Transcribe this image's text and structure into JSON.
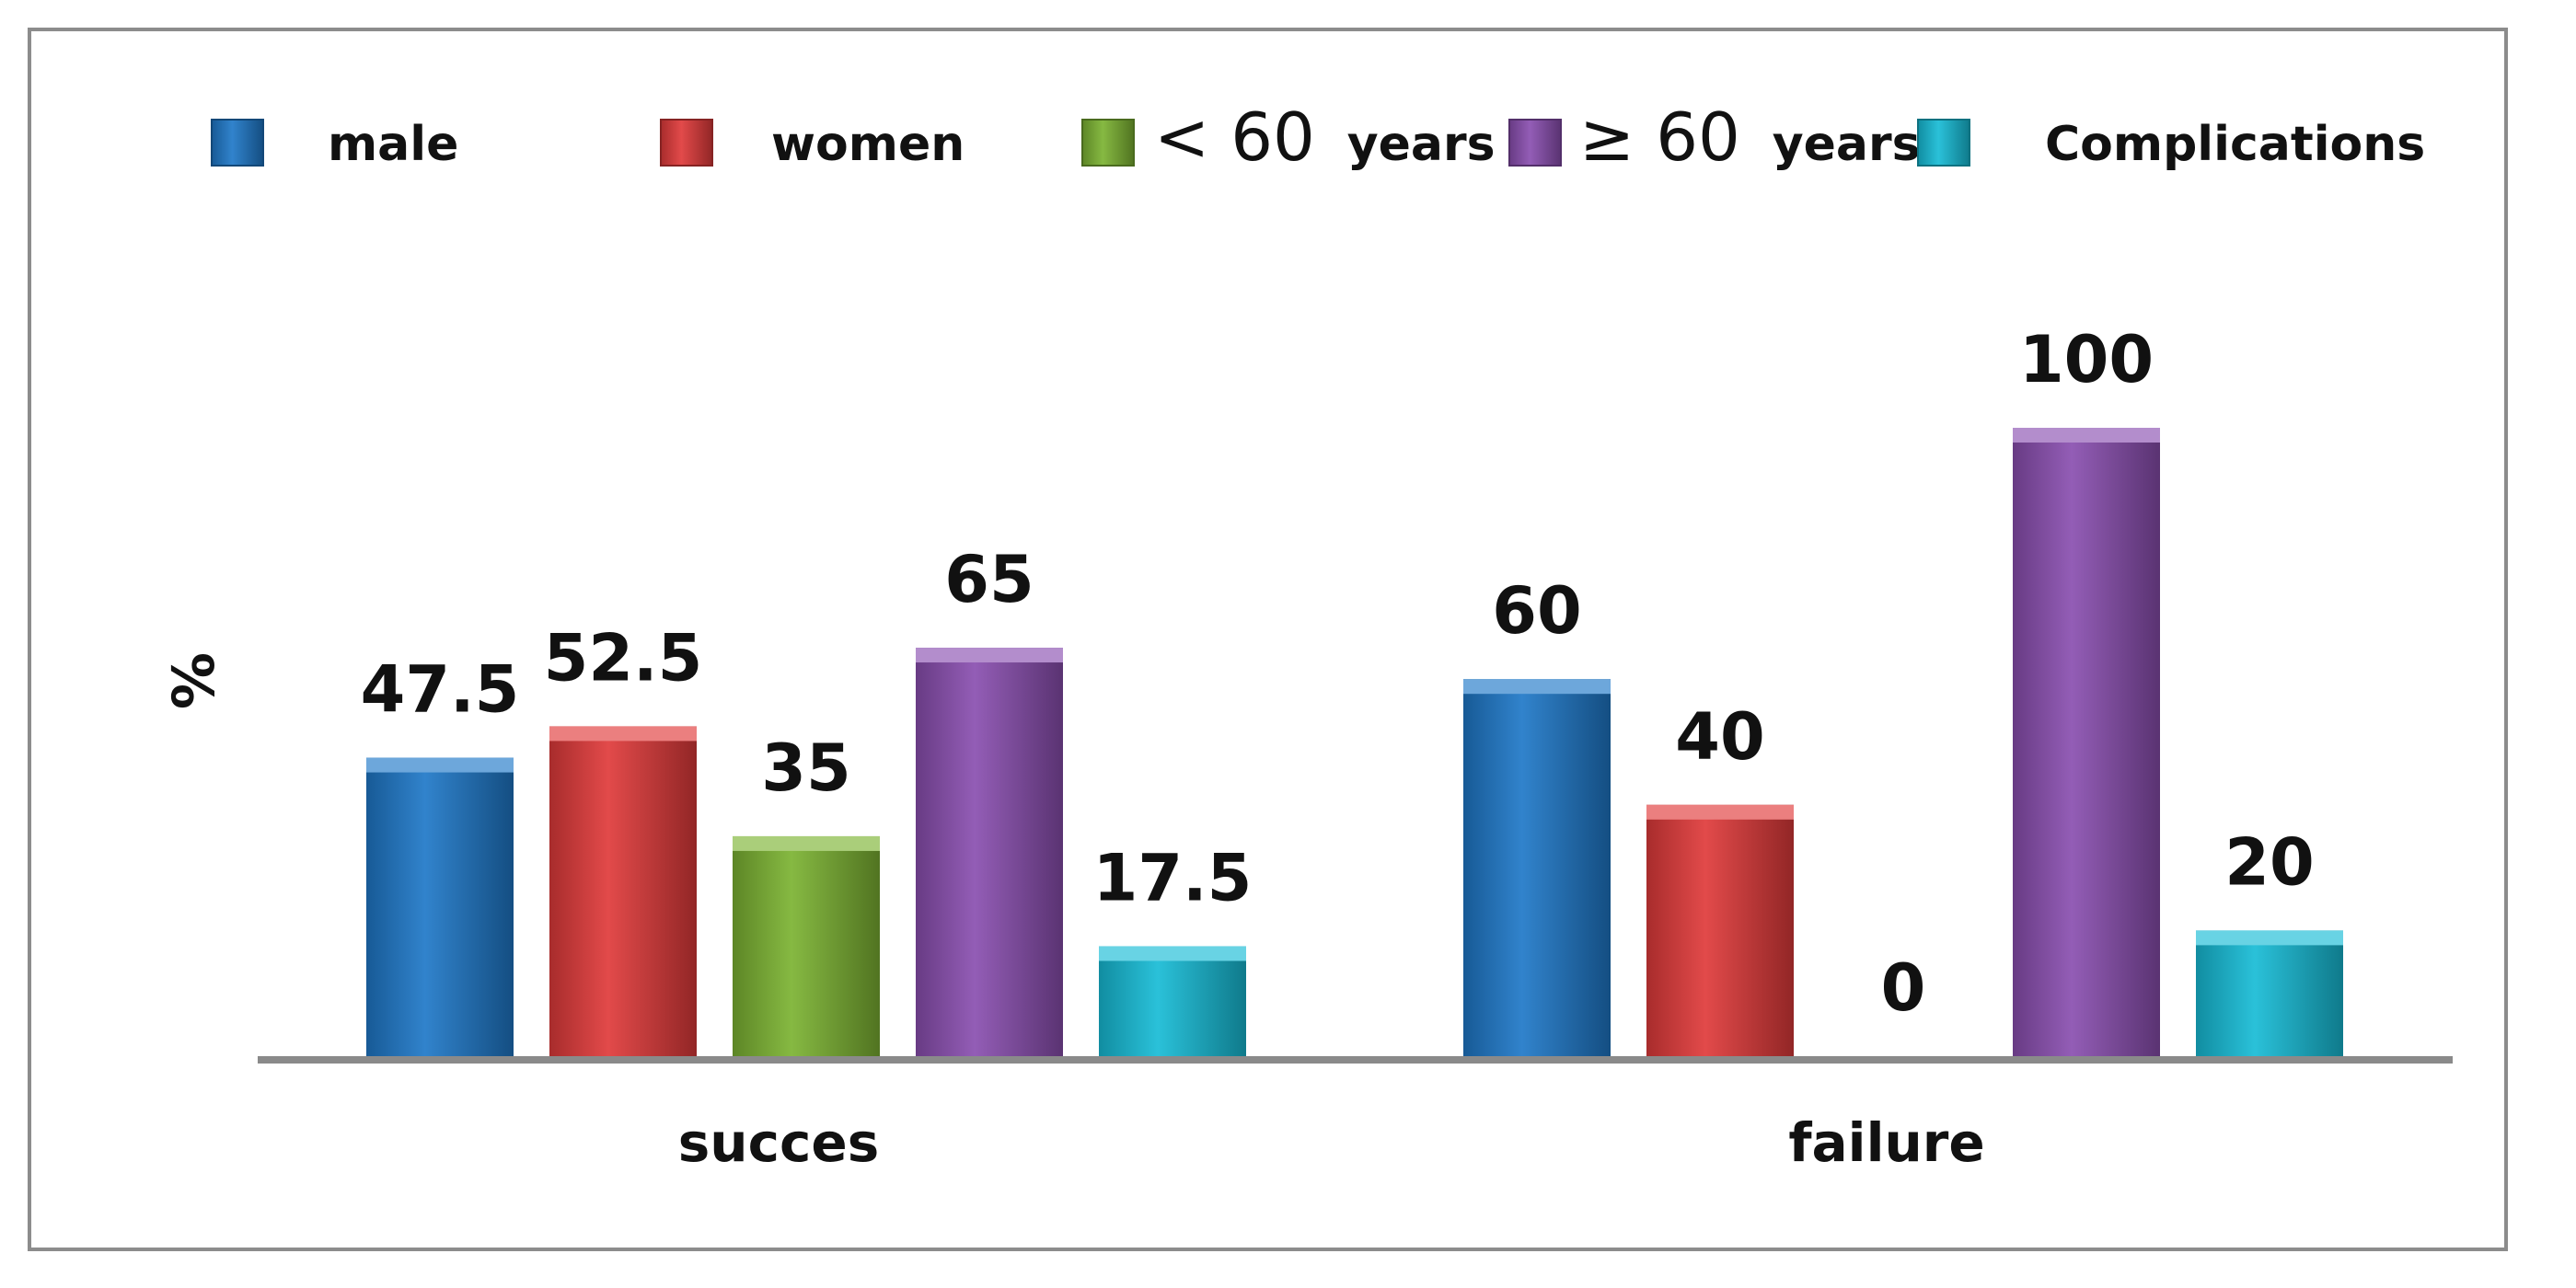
{
  "chart_data": {
    "type": "bar",
    "title": "",
    "xlabel": "",
    "ylabel": "%",
    "ylim": [
      0,
      100
    ],
    "grid": false,
    "legend_position": "top",
    "categories": [
      "succes",
      "failure"
    ],
    "series": [
      {
        "name": "male",
        "prefix": "",
        "number": "",
        "suffix": "male",
        "color": "#1f78c8",
        "values": [
          47.5,
          60
        ]
      },
      {
        "name": "women",
        "prefix": "",
        "number": "",
        "suffix": "women",
        "color": "#e03a3a",
        "values": [
          52.5,
          40
        ]
      },
      {
        "name": "< 60 years",
        "prefix": "< ",
        "number": "60",
        "suffix": "years",
        "color": "#7cb332",
        "values": [
          35,
          0
        ]
      },
      {
        "name": "≥ 60 years",
        "prefix": "≥ ",
        "number": "60",
        "suffix": "years",
        "color": "#8a4fb0",
        "values": [
          65,
          100
        ]
      },
      {
        "name": "Complications",
        "prefix": "",
        "number": "",
        "suffix": "Complications",
        "color": "#17bcd6",
        "values": [
          17.5,
          20
        ]
      }
    ],
    "value_labels": [
      [
        "47.5",
        "60"
      ],
      [
        "52.5",
        "40"
      ],
      [
        "35",
        "0"
      ],
      [
        "65",
        "100"
      ],
      [
        "17.5",
        "20"
      ]
    ]
  }
}
